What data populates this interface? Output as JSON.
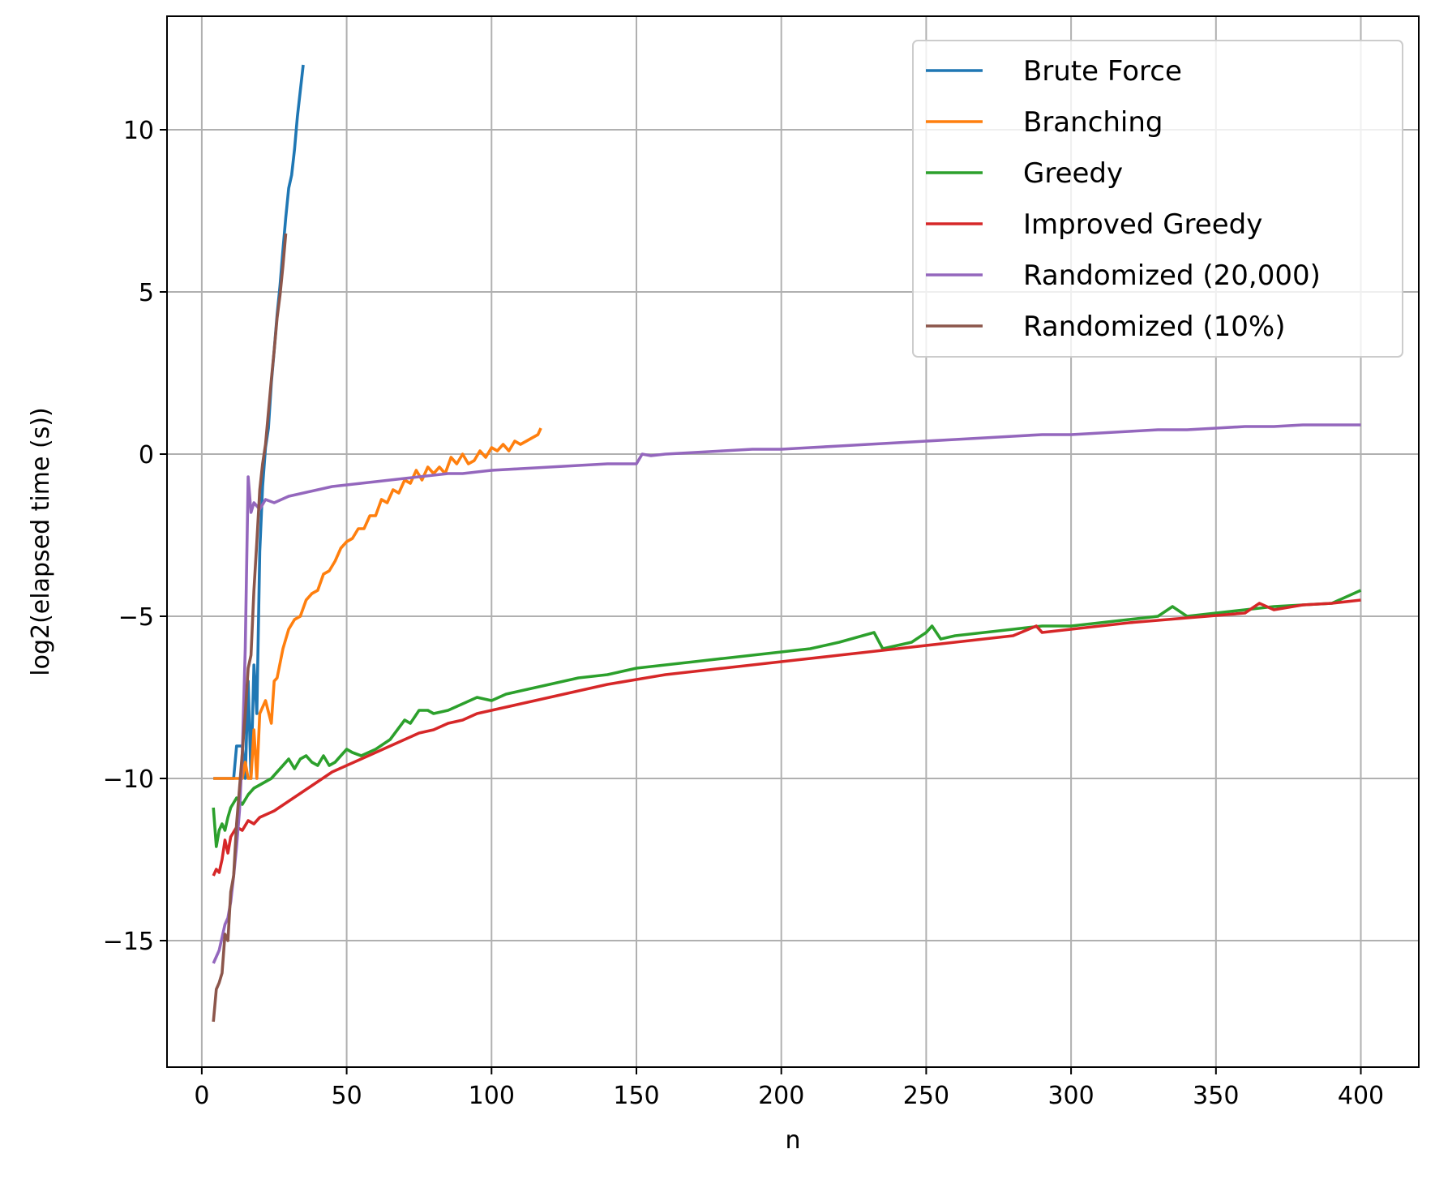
{
  "chart_data": {
    "type": "line",
    "title": "",
    "xlabel": "n",
    "ylabel": "log2(elapsed time (s))",
    "xlim": [
      -12,
      420
    ],
    "ylim": [
      -18.9,
      13.5
    ],
    "xticks": [
      0,
      50,
      100,
      150,
      200,
      250,
      300,
      350,
      400
    ],
    "yticks": [
      10,
      5,
      0,
      -5,
      -10,
      -15
    ],
    "ytick_labels": [
      "10",
      "5",
      "0",
      "−5",
      "−10",
      "−15"
    ],
    "grid": true,
    "legend_position": "top-right",
    "series": [
      {
        "name": "Brute Force",
        "color": "#1f77b4",
        "x": [
          4,
          6,
          8,
          10,
          11,
          12,
          13,
          14,
          15,
          16,
          17,
          18,
          19,
          20,
          21,
          22,
          23,
          24,
          25,
          26,
          27,
          28,
          29,
          30,
          31,
          32,
          33,
          34,
          35
        ],
        "y": [
          -10,
          -10,
          -10,
          -10,
          -10,
          -9,
          -9,
          -9,
          -10,
          -7,
          -10,
          -6.5,
          -8,
          -3,
          -1,
          0.2,
          0.8,
          2.2,
          3.2,
          4.3,
          5.2,
          6.3,
          7.3,
          8.2,
          8.6,
          9.4,
          10.4,
          11.2,
          12
        ]
      },
      {
        "name": "Branching",
        "color": "#ff7f0e",
        "x": [
          4,
          6,
          8,
          10,
          12,
          14,
          15,
          16,
          17,
          18,
          19,
          20,
          22,
          24,
          25,
          26,
          28,
          30,
          32,
          34,
          36,
          38,
          40,
          42,
          44,
          46,
          48,
          50,
          52,
          54,
          56,
          58,
          60,
          62,
          64,
          66,
          68,
          70,
          72,
          74,
          76,
          78,
          80,
          82,
          84,
          86,
          88,
          90,
          92,
          94,
          96,
          98,
          100,
          102,
          104,
          106,
          108,
          110,
          112,
          114,
          116,
          117
        ],
        "y": [
          -10,
          -10,
          -10,
          -10,
          -10,
          -10,
          -9.5,
          -10,
          -10,
          -8.5,
          -10,
          -8,
          -7.6,
          -8.3,
          -7,
          -6.9,
          -6,
          -5.4,
          -5.1,
          -5,
          -4.5,
          -4.3,
          -4.2,
          -3.7,
          -3.6,
          -3.3,
          -2.9,
          -2.7,
          -2.6,
          -2.3,
          -2.3,
          -1.9,
          -1.9,
          -1.4,
          -1.5,
          -1.1,
          -1.2,
          -0.8,
          -0.9,
          -0.5,
          -0.8,
          -0.4,
          -0.6,
          -0.4,
          -0.6,
          -0.1,
          -0.3,
          0,
          -0.3,
          -0.2,
          0.1,
          -0.1,
          0.2,
          0.1,
          0.3,
          0.1,
          0.4,
          0.3,
          0.4,
          0.5,
          0.6,
          0.8
        ]
      },
      {
        "name": "Greedy",
        "color": "#2ca02c",
        "x": [
          4,
          5,
          6,
          7,
          8,
          9,
          10,
          12,
          14,
          16,
          18,
          20,
          22,
          24,
          26,
          28,
          30,
          32,
          34,
          36,
          38,
          40,
          42,
          44,
          46,
          48,
          50,
          52,
          55,
          60,
          65,
          70,
          72,
          75,
          78,
          80,
          85,
          90,
          95,
          100,
          105,
          110,
          115,
          120,
          125,
          130,
          135,
          140,
          145,
          150,
          160,
          170,
          180,
          190,
          200,
          210,
          220,
          228,
          232,
          235,
          240,
          245,
          250,
          252,
          255,
          260,
          270,
          280,
          290,
          300,
          310,
          320,
          330,
          335,
          340,
          350,
          360,
          370,
          380,
          390,
          400
        ],
        "y": [
          -10.9,
          -12.1,
          -11.6,
          -11.4,
          -11.6,
          -11.2,
          -10.9,
          -10.6,
          -10.8,
          -10.5,
          -10.3,
          -10.2,
          -10.1,
          -10.0,
          -9.8,
          -9.6,
          -9.4,
          -9.7,
          -9.4,
          -9.3,
          -9.5,
          -9.6,
          -9.3,
          -9.6,
          -9.5,
          -9.3,
          -9.1,
          -9.2,
          -9.3,
          -9.1,
          -8.8,
          -8.2,
          -8.3,
          -7.9,
          -7.9,
          -8.0,
          -7.9,
          -7.7,
          -7.5,
          -7.6,
          -7.4,
          -7.3,
          -7.2,
          -7.1,
          -7.0,
          -6.9,
          -6.85,
          -6.8,
          -6.7,
          -6.6,
          -6.5,
          -6.4,
          -6.3,
          -6.2,
          -6.1,
          -6.0,
          -5.8,
          -5.6,
          -5.5,
          -6.0,
          -5.9,
          -5.8,
          -5.5,
          -5.3,
          -5.7,
          -5.6,
          -5.5,
          -5.4,
          -5.3,
          -5.3,
          -5.2,
          -5.1,
          -5.0,
          -4.7,
          -5.0,
          -4.9,
          -4.8,
          -4.7,
          -4.65,
          -4.6,
          -4.2
        ]
      },
      {
        "name": "Improved Greedy",
        "color": "#d62728",
        "x": [
          4,
          5,
          6,
          7,
          8,
          9,
          10,
          12,
          14,
          16,
          18,
          20,
          25,
          30,
          35,
          40,
          45,
          50,
          55,
          60,
          65,
          70,
          75,
          80,
          85,
          90,
          95,
          100,
          110,
          120,
          130,
          140,
          150,
          160,
          170,
          180,
          190,
          200,
          220,
          240,
          260,
          280,
          288,
          290,
          300,
          320,
          340,
          360,
          365,
          370,
          380,
          390,
          400
        ],
        "y": [
          -13.0,
          -12.8,
          -12.9,
          -12.5,
          -11.9,
          -12.3,
          -11.8,
          -11.5,
          -11.6,
          -11.3,
          -11.4,
          -11.2,
          -11.0,
          -10.7,
          -10.4,
          -10.1,
          -9.8,
          -9.6,
          -9.4,
          -9.2,
          -9.0,
          -8.8,
          -8.6,
          -8.5,
          -8.3,
          -8.2,
          -8.0,
          -7.9,
          -7.7,
          -7.5,
          -7.3,
          -7.1,
          -6.95,
          -6.8,
          -6.7,
          -6.6,
          -6.5,
          -6.4,
          -6.2,
          -6.0,
          -5.8,
          -5.6,
          -5.3,
          -5.5,
          -5.4,
          -5.2,
          -5.05,
          -4.9,
          -4.6,
          -4.8,
          -4.65,
          -4.6,
          -4.5
        ]
      },
      {
        "name": "Randomized (20,000)",
        "color": "#9467bd",
        "x": [
          4,
          6,
          8,
          9,
          10,
          11,
          12,
          13,
          14,
          15,
          16,
          17,
          18,
          20,
          22,
          25,
          30,
          35,
          40,
          45,
          50,
          55,
          60,
          65,
          70,
          75,
          80,
          85,
          90,
          95,
          100,
          110,
          120,
          130,
          140,
          150,
          152,
          155,
          160,
          170,
          180,
          190,
          200,
          210,
          220,
          230,
          240,
          250,
          260,
          270,
          280,
          290,
          300,
          310,
          320,
          330,
          340,
          350,
          360,
          370,
          380,
          390,
          400
        ],
        "y": [
          -15.7,
          -15.3,
          -14.5,
          -14.3,
          -13.8,
          -13.0,
          -12.1,
          -11.0,
          -9.2,
          -6.0,
          -0.7,
          -1.8,
          -1.5,
          -1.7,
          -1.4,
          -1.5,
          -1.3,
          -1.2,
          -1.1,
          -1.0,
          -0.95,
          -0.9,
          -0.85,
          -0.8,
          -0.75,
          -0.7,
          -0.65,
          -0.6,
          -0.6,
          -0.55,
          -0.5,
          -0.45,
          -0.4,
          -0.35,
          -0.3,
          -0.3,
          0.0,
          -0.05,
          0.0,
          0.05,
          0.1,
          0.15,
          0.15,
          0.2,
          0.25,
          0.3,
          0.35,
          0.4,
          0.45,
          0.5,
          0.55,
          0.6,
          0.6,
          0.65,
          0.7,
          0.75,
          0.75,
          0.8,
          0.85,
          0.85,
          0.9,
          0.9,
          0.9
        ]
      },
      {
        "name": "Randomized (10%)",
        "color": "#8c564b",
        "x": [
          4,
          5,
          6,
          7,
          8,
          9,
          10,
          11,
          12,
          13,
          14,
          15,
          16,
          17,
          18,
          19,
          20,
          21,
          22,
          23,
          24,
          25,
          26,
          27,
          28,
          29
        ],
        "y": [
          -17.5,
          -16.5,
          -16.3,
          -16.0,
          -14.8,
          -15.0,
          -13.5,
          -13.0,
          -11.4,
          -10.3,
          -9.2,
          -8.0,
          -6.6,
          -6.2,
          -4.2,
          -2.7,
          -1.1,
          -0.3,
          0.3,
          1.3,
          2.3,
          3.2,
          4.2,
          4.9,
          5.8,
          6.8
        ]
      }
    ]
  }
}
